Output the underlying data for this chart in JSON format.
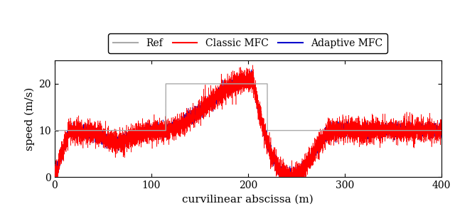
{
  "title": "",
  "xlabel": "curvilinear abscissa (m)",
  "ylabel": "speed (m/s)",
  "xlim": [
    0,
    400
  ],
  "ylim": [
    0,
    25
  ],
  "xticks": [
    0,
    100,
    200,
    300,
    400
  ],
  "yticks": [
    0,
    10,
    20
  ],
  "ref_color": "#aaaaaa",
  "classic_color": "#ff0000",
  "adaptive_color": "#0000cc",
  "ref_linewidth": 1.0,
  "classic_linewidth": 0.4,
  "adaptive_linewidth": 0.4,
  "legend_labels": [
    "Ref",
    "Classic MFC",
    "Adaptive MFC"
  ],
  "n_points": 8000,
  "noise_classic": 1.2,
  "noise_adaptive": 0.7,
  "figsize": [
    6.4,
    3.04
  ],
  "dpi": 100
}
